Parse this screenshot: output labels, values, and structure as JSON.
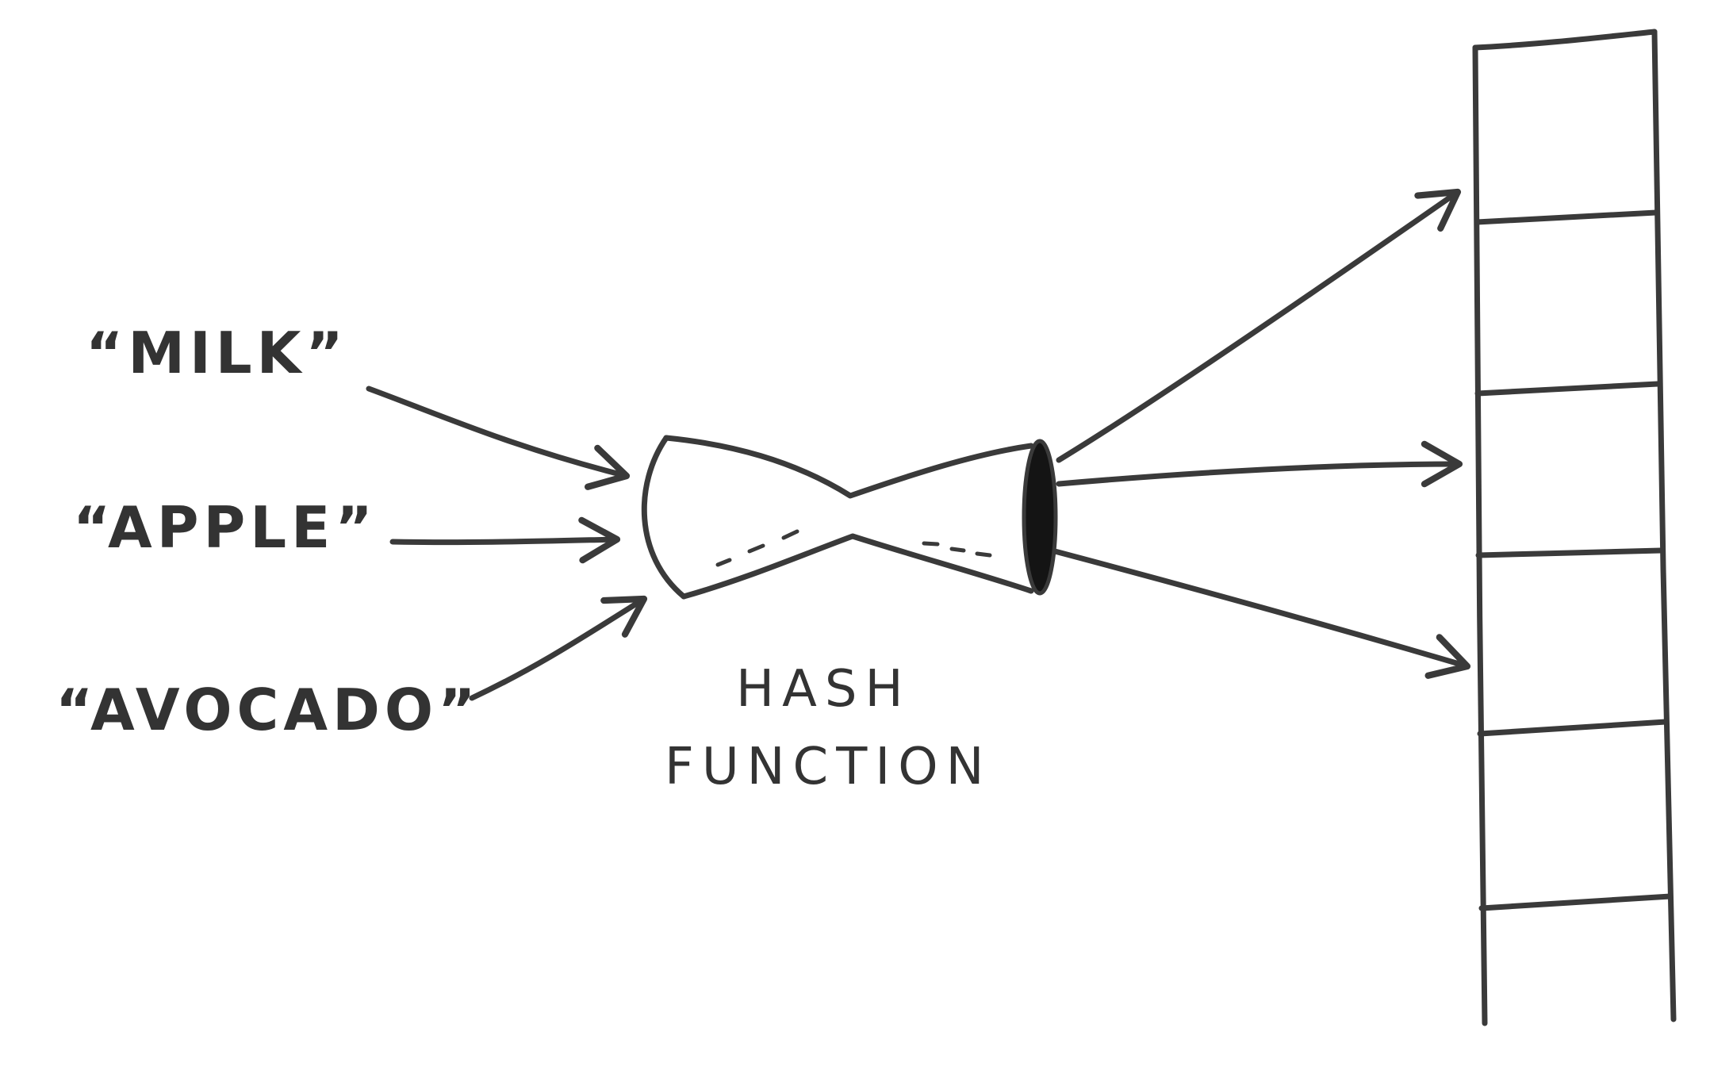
{
  "inputs": [
    {
      "label": "“MILK”"
    },
    {
      "label": "“APPLE”"
    },
    {
      "label": "“AVOCADO”"
    }
  ],
  "hash_function": {
    "line1": "HASH",
    "line2": "FUNCTION"
  },
  "array": {
    "slot_count": 6
  },
  "colors": {
    "ink": "#3a3a3a",
    "background": "#ffffff"
  }
}
